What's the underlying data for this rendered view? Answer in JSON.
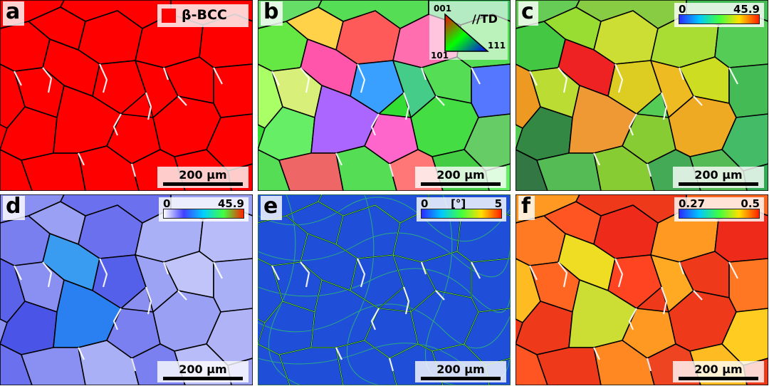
{
  "panels": [
    {
      "letter": "a",
      "scale_label": "200 μm",
      "legend_label": "β-BCC",
      "legend_color": "#ff0000"
    },
    {
      "letter": "b",
      "scale_label": "200 μm",
      "ipf": {
        "top": "001",
        "left_bottom": "101",
        "right_bottom": "111",
        "direction": "//TD"
      }
    },
    {
      "letter": "c",
      "scale_label": "200 μm",
      "colorbar": {
        "min": "0",
        "max": "45.9"
      }
    },
    {
      "letter": "d",
      "scale_label": "200 μm",
      "colorbar": {
        "min": "0",
        "max": "45.9"
      }
    },
    {
      "letter": "e",
      "scale_label": "200 μm",
      "colorbar": {
        "min": "0",
        "unit": "[°]",
        "max": "5"
      }
    },
    {
      "letter": "f",
      "scale_label": "200 μm",
      "colorbar": {
        "min": "0.27",
        "max": "0.5"
      }
    }
  ],
  "colors": {
    "bcc_red": "#ff0000",
    "grain_boundary": "#000000",
    "background": "#ffffff"
  },
  "icons": [
    "color-swatch-icon",
    "ipf-triangle-icon",
    "scale-bar-icon"
  ]
}
